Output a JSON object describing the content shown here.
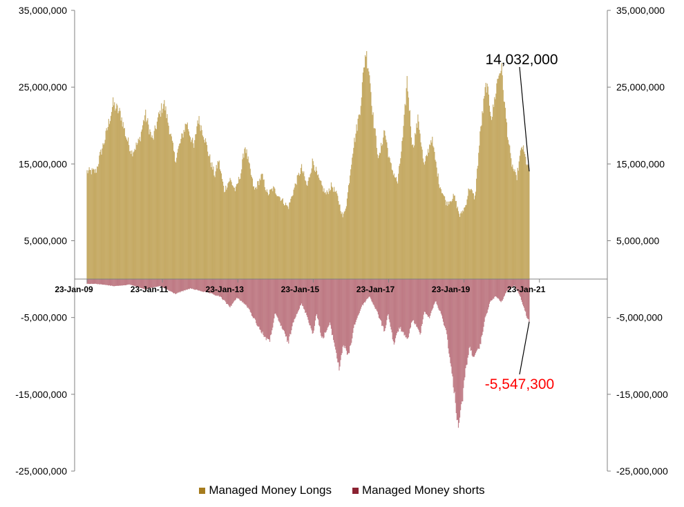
{
  "chart_data": {
    "type": "bar",
    "title": "",
    "xlabel": "",
    "ylabel": "",
    "ylim": [
      -25000000,
      35000000
    ],
    "yticks_left": [
      "35,000,000",
      "25,000,000",
      "15,000,000",
      "5,000,000",
      "-5,000,000",
      "-15,000,000",
      "-25,000,000"
    ],
    "yticks_right": [
      "35,000,000",
      "25,000,000",
      "15,000,000",
      "5,000,000",
      "-5,000,000",
      "-15,000,000",
      "-25,000,000"
    ],
    "ytick_values": [
      35000000,
      25000000,
      15000000,
      5000000,
      -5000000,
      -15000000,
      -25000000
    ],
    "x_range_years": [
      2009.0,
      2021.5
    ],
    "x_ticks": [
      {
        "label": "23-Jan-09",
        "year": 2009.06
      },
      {
        "label": "23-Jan-11",
        "year": 2011.06
      },
      {
        "label": "23-Jan-13",
        "year": 2013.06
      },
      {
        "label": "23-Jan-15",
        "year": 2015.06
      },
      {
        "label": "23-Jan-17",
        "year": 2017.06
      },
      {
        "label": "23-Jan-19",
        "year": 2019.06
      },
      {
        "label": "23-Jan-21",
        "year": 2021.06
      }
    ],
    "series": [
      {
        "name": "Managed Money Longs",
        "color": "#c9b06a",
        "legend_color": "#a67c1e",
        "keyframes": [
          [
            2009.3,
            14000000
          ],
          [
            2009.4,
            16000000
          ],
          [
            2009.55,
            18500000
          ],
          [
            2009.75,
            22800000
          ],
          [
            2009.95,
            21500000
          ],
          [
            2010.1,
            18500000
          ],
          [
            2010.25,
            16500000
          ],
          [
            2010.45,
            18000000
          ],
          [
            2010.6,
            21500000
          ],
          [
            2010.8,
            18000000
          ],
          [
            2010.95,
            21000000
          ],
          [
            2011.1,
            23000000
          ],
          [
            2011.25,
            19500000
          ],
          [
            2011.4,
            15500000
          ],
          [
            2011.55,
            18000000
          ],
          [
            2011.7,
            20500000
          ],
          [
            2011.9,
            17000000
          ],
          [
            2012.0,
            21000000
          ],
          [
            2012.15,
            19000000
          ],
          [
            2012.3,
            16000000
          ],
          [
            2012.45,
            13500000
          ],
          [
            2012.55,
            15500000
          ],
          [
            2012.7,
            11500000
          ],
          [
            2012.85,
            13000000
          ],
          [
            2013.0,
            11500000
          ],
          [
            2013.15,
            14000000
          ],
          [
            2013.25,
            17500000
          ],
          [
            2013.35,
            15000000
          ],
          [
            2013.5,
            11500000
          ],
          [
            2013.7,
            13500000
          ],
          [
            2013.85,
            11000000
          ],
          [
            2014.0,
            11800000
          ],
          [
            2014.2,
            10500000
          ],
          [
            2014.4,
            9300000
          ],
          [
            2014.6,
            12500000
          ],
          [
            2014.75,
            14500000
          ],
          [
            2014.9,
            12000000
          ],
          [
            2015.05,
            15500000
          ],
          [
            2015.2,
            13000000
          ],
          [
            2015.4,
            11000000
          ],
          [
            2015.55,
            12200000
          ],
          [
            2015.7,
            10800000
          ],
          [
            2015.85,
            8000000
          ],
          [
            2015.95,
            10000000
          ],
          [
            2016.1,
            16500000
          ],
          [
            2016.3,
            22000000
          ],
          [
            2016.45,
            29800000
          ],
          [
            2016.55,
            27000000
          ],
          [
            2016.65,
            21000000
          ],
          [
            2016.8,
            15500000
          ],
          [
            2016.95,
            19500000
          ],
          [
            2017.1,
            15000000
          ],
          [
            2017.3,
            12500000
          ],
          [
            2017.45,
            19000000
          ],
          [
            2017.55,
            26000000
          ],
          [
            2017.7,
            17000000
          ],
          [
            2017.85,
            21000000
          ],
          [
            2018.0,
            14500000
          ],
          [
            2018.2,
            18500000
          ],
          [
            2018.4,
            12500000
          ],
          [
            2018.6,
            9800000
          ],
          [
            2018.8,
            10800000
          ],
          [
            2018.95,
            8200000
          ],
          [
            2019.1,
            9500000
          ],
          [
            2019.2,
            12000000
          ],
          [
            2019.35,
            10500000
          ],
          [
            2019.5,
            19500000
          ],
          [
            2019.65,
            25500000
          ],
          [
            2019.8,
            21000000
          ],
          [
            2019.95,
            26000000
          ],
          [
            2020.05,
            27800000
          ],
          [
            2020.15,
            22000000
          ],
          [
            2020.3,
            15500000
          ],
          [
            2020.45,
            13000000
          ],
          [
            2020.6,
            17500000
          ],
          [
            2020.7,
            15500000
          ],
          [
            2020.79,
            14032000
          ]
        ]
      },
      {
        "name": "Managed Money shorts",
        "color": "#c98a93",
        "legend_color": "#8b2232",
        "keyframes": [
          [
            2009.3,
            -600000
          ],
          [
            2009.8,
            -900000
          ],
          [
            2010.2,
            -700000
          ],
          [
            2010.6,
            -1300000
          ],
          [
            2011.0,
            -900000
          ],
          [
            2011.4,
            -1900000
          ],
          [
            2011.8,
            -1200000
          ],
          [
            2012.3,
            -1800000
          ],
          [
            2012.6,
            -2300000
          ],
          [
            2012.85,
            -3600000
          ],
          [
            2013.05,
            -2400000
          ],
          [
            2013.3,
            -3500000
          ],
          [
            2013.5,
            -5200000
          ],
          [
            2013.7,
            -7000000
          ],
          [
            2013.9,
            -8200000
          ],
          [
            2014.05,
            -4500000
          ],
          [
            2014.25,
            -6500000
          ],
          [
            2014.4,
            -8300000
          ],
          [
            2014.55,
            -5200000
          ],
          [
            2014.75,
            -3200000
          ],
          [
            2014.9,
            -4800000
          ],
          [
            2015.05,
            -7200000
          ],
          [
            2015.15,
            -4500000
          ],
          [
            2015.3,
            -7800000
          ],
          [
            2015.5,
            -5800000
          ],
          [
            2015.65,
            -9000000
          ],
          [
            2015.75,
            -11800000
          ],
          [
            2015.85,
            -8500000
          ],
          [
            2016.0,
            -10000000
          ],
          [
            2016.15,
            -6000000
          ],
          [
            2016.35,
            -3500000
          ],
          [
            2016.55,
            -2200000
          ],
          [
            2016.75,
            -4200000
          ],
          [
            2016.95,
            -6800000
          ],
          [
            2017.05,
            -4500000
          ],
          [
            2017.2,
            -8500000
          ],
          [
            2017.35,
            -6200000
          ],
          [
            2017.55,
            -8000000
          ],
          [
            2017.7,
            -5200000
          ],
          [
            2017.9,
            -7200000
          ],
          [
            2018.0,
            -4200000
          ],
          [
            2018.15,
            -5000000
          ],
          [
            2018.3,
            -2800000
          ],
          [
            2018.45,
            -4500000
          ],
          [
            2018.6,
            -7000000
          ],
          [
            2018.7,
            -11000000
          ],
          [
            2018.8,
            -14500000
          ],
          [
            2018.9,
            -19000000
          ],
          [
            2019.0,
            -16500000
          ],
          [
            2019.1,
            -12000000
          ],
          [
            2019.2,
            -9000000
          ],
          [
            2019.35,
            -10200000
          ],
          [
            2019.5,
            -8500000
          ],
          [
            2019.6,
            -5500000
          ],
          [
            2019.75,
            -3000000
          ],
          [
            2019.9,
            -2200000
          ],
          [
            2020.05,
            -3000000
          ],
          [
            2020.2,
            -1500000
          ],
          [
            2020.4,
            -800000
          ],
          [
            2020.55,
            -2200000
          ],
          [
            2020.7,
            -4500000
          ],
          [
            2020.79,
            -5547300
          ]
        ]
      }
    ],
    "annotations": [
      {
        "text": "14,032,000",
        "value": 14032000,
        "year": 2020.79,
        "series": "Managed Money Longs"
      },
      {
        "text": "-5,547,300",
        "value": -5547300,
        "year": 2020.79,
        "series": "Managed Money shorts"
      }
    ]
  },
  "legend": {
    "longs_label": "Managed Money Longs",
    "shorts_label": "Managed Money shorts"
  }
}
